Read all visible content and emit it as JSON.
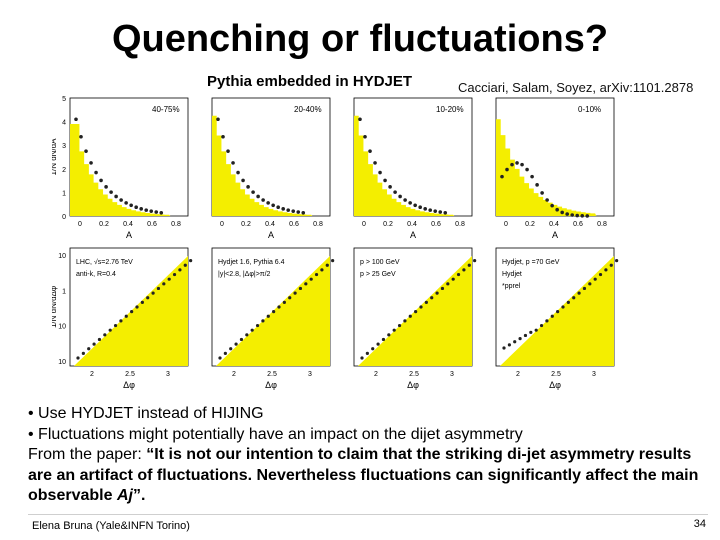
{
  "slide": {
    "title": "Quenching or fluctuations?",
    "citation": "Cacciari, Salam, Soyez, arXiv:1101.2878",
    "figure_title": "Pythia embedded in HYDJET",
    "top_panels": [
      {
        "label": "40-75%"
      },
      {
        "label": "20-40%"
      },
      {
        "label": "10-20%"
      },
      {
        "label": "0-10%"
      }
    ],
    "top_ylabel": "1/N dN/dA",
    "top_yticks": [
      "0",
      "1",
      "2",
      "3",
      "4",
      "5"
    ],
    "top_xticks": [
      "0",
      "0.2",
      "0.4",
      "0.6",
      "0.8"
    ],
    "top_xlabel": "A",
    "bottom_ylabel": "1/N dN/dΔφ",
    "bottom_xticks": [
      "2",
      "2.5",
      "3"
    ],
    "bottom_yticks": [
      "10",
      "1",
      "10",
      "10"
    ],
    "bottom_xlabel": "Δφ",
    "panel_annotations": {
      "p1": [
        "LHC, √s=2.76 TeV",
        "anti-k, R=0.4"
      ],
      "p2": [
        "Hydjet 1.6, Pythia 6.4",
        "|y|<2.8, |Δφ|>π/2"
      ],
      "p3": [
        "p > 100 GeV",
        "p > 25 GeV"
      ],
      "p4": [
        "Hydjet, p =70 GeV",
        "Hydjet",
        "*pprel"
      ]
    },
    "bullets": [
      "• Use HYDJET instead of HIJING",
      "• Fluctuations might potentially have an impact on the dijet asymmetry"
    ],
    "quote_prefix": "From the paper: ",
    "quote": "“It is not our intention to claim that the striking di-jet asymmetry results are an artifact of fluctuations. Nevertheless fluctuations can significantly affect the main observable ",
    "quote_italic": "Aj",
    "quote_end": "”.",
    "footer_left": "Elena Bruna (Yale&INFN Torino)",
    "page_number": "34",
    "colors": {
      "fill": "#f4ee00",
      "marker": "#222222"
    }
  }
}
